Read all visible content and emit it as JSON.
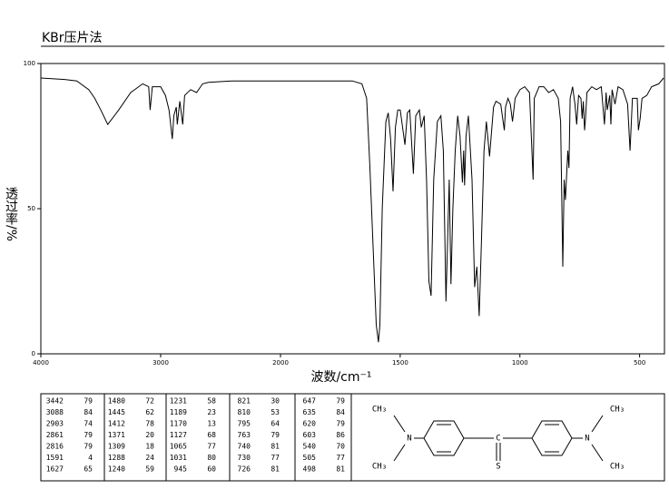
{
  "chart_data": {
    "type": "line",
    "title": "KBr压片法",
    "x_label": "波数/cm⁻¹",
    "y_label": "透过率/%",
    "xlim": [
      4000,
      400
    ],
    "ylim": [
      0,
      100
    ],
    "xticks": [
      4000,
      3000,
      2000,
      1500,
      1000,
      500
    ],
    "yticks": [
      0,
      50,
      100
    ],
    "grid": false,
    "color": "#000000",
    "x": [
      4000,
      3800,
      3700,
      3600,
      3550,
      3500,
      3442,
      3350,
      3250,
      3150,
      3100,
      3088,
      3070,
      3000,
      2960,
      2930,
      2903,
      2890,
      2870,
      2861,
      2840,
      2816,
      2800,
      2750,
      2700,
      2650,
      2600,
      2400,
      2200,
      2000,
      1800,
      1700,
      1660,
      1640,
      1627,
      1610,
      1600,
      1591,
      1585,
      1575,
      1560,
      1550,
      1540,
      1530,
      1520,
      1510,
      1500,
      1480,
      1470,
      1460,
      1445,
      1435,
      1420,
      1412,
      1400,
      1390,
      1380,
      1371,
      1360,
      1345,
      1330,
      1320,
      1309,
      1300,
      1295,
      1288,
      1280,
      1270,
      1260,
      1250,
      1240,
      1235,
      1231,
      1225,
      1215,
      1200,
      1189,
      1180,
      1170,
      1160,
      1150,
      1140,
      1127,
      1110,
      1100,
      1080,
      1065,
      1060,
      1050,
      1040,
      1031,
      1020,
      1000,
      980,
      960,
      945,
      940,
      920,
      900,
      880,
      860,
      840,
      830,
      821,
      815,
      810,
      800,
      795,
      790,
      780,
      770,
      763,
      755,
      745,
      740,
      735,
      730,
      726,
      720,
      700,
      680,
      660,
      647,
      640,
      635,
      625,
      620,
      615,
      603,
      590,
      570,
      550,
      540,
      530,
      510,
      505,
      498,
      490,
      470,
      450,
      420,
      400
    ],
    "values": [
      95,
      94.5,
      94,
      91,
      88,
      84,
      79,
      84,
      90,
      93,
      92,
      84,
      92,
      92,
      89,
      84,
      74,
      82,
      85,
      79,
      87,
      79,
      89,
      91,
      90,
      93,
      93.5,
      94,
      94,
      94,
      94,
      94,
      93,
      88,
      65,
      30,
      10,
      4,
      10,
      50,
      80,
      83,
      74,
      56,
      78,
      84,
      84,
      72,
      83,
      84,
      62,
      82,
      84,
      78,
      82,
      60,
      25,
      20,
      60,
      80,
      82,
      70,
      18,
      45,
      60,
      24,
      50,
      70,
      82,
      75,
      59,
      70,
      58,
      75,
      82,
      60,
      23,
      30,
      13,
      40,
      70,
      80,
      68,
      85,
      87,
      86,
      77,
      85,
      88,
      86,
      80,
      88,
      91,
      92,
      90,
      60,
      88,
      92,
      92,
      90,
      91,
      88,
      80,
      30,
      60,
      53,
      70,
      64,
      88,
      92,
      86,
      79,
      89,
      88,
      81,
      87,
      77,
      81,
      90,
      92,
      91,
      92,
      79,
      90,
      84,
      89,
      79,
      91,
      86,
      92,
      91,
      86,
      70,
      88,
      88,
      77,
      81,
      88,
      89,
      92,
      93,
      95
    ]
  },
  "peak_table": {
    "columns": [
      [
        [
          3442,
          79
        ],
        [
          3088,
          84
        ],
        [
          2903,
          74
        ],
        [
          2861,
          79
        ],
        [
          2816,
          79
        ],
        [
          1591,
          4
        ],
        [
          1627,
          65
        ]
      ],
      [
        [
          1480,
          72
        ],
        [
          1445,
          62
        ],
        [
          1412,
          78
        ],
        [
          1371,
          20
        ],
        [
          1309,
          18
        ],
        [
          1288,
          24
        ],
        [
          1240,
          59
        ]
      ],
      [
        [
          1231,
          58
        ],
        [
          1189,
          23
        ],
        [
          1170,
          13
        ],
        [
          1127,
          68
        ],
        [
          1065,
          77
        ],
        [
          1031,
          80
        ],
        [
          945,
          60
        ]
      ],
      [
        [
          821,
          30
        ],
        [
          810,
          53
        ],
        [
          795,
          64
        ],
        [
          763,
          79
        ],
        [
          740,
          81
        ],
        [
          730,
          77
        ],
        [
          726,
          81
        ]
      ],
      [
        [
          647,
          79
        ],
        [
          635,
          84
        ],
        [
          620,
          79
        ],
        [
          603,
          86
        ],
        [
          540,
          70
        ],
        [
          505,
          77
        ],
        [
          498,
          81
        ]
      ]
    ]
  },
  "structure": {
    "left_methyl_top": "CH₃",
    "left_methyl_bottom": "CH₃",
    "left_n": "N",
    "right_methyl_top": "CH₃",
    "right_methyl_bottom": "CH₃",
    "right_n": "N",
    "sulfur": "S"
  }
}
